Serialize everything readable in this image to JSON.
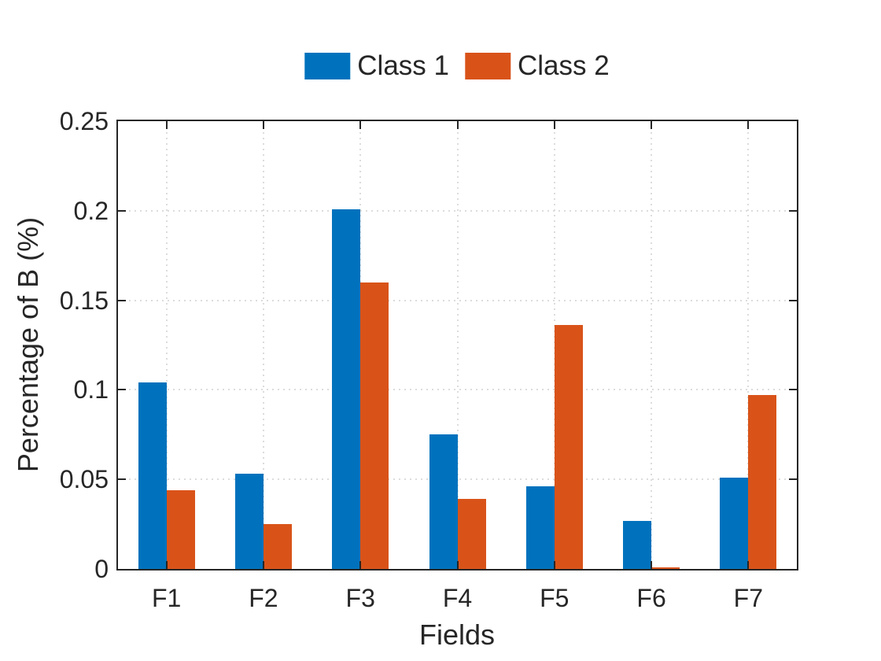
{
  "chart_data": {
    "type": "bar",
    "title": "",
    "categories": [
      "F1",
      "F2",
      "F3",
      "F4",
      "F5",
      "F6",
      "F7"
    ],
    "series": [
      {
        "name": "Class 1",
        "color": "#0072BD",
        "values": [
          0.104,
          0.053,
          0.201,
          0.075,
          0.046,
          0.027,
          0.051
        ]
      },
      {
        "name": "Class 2",
        "color": "#D95319",
        "values": [
          0.044,
          0.025,
          0.16,
          0.039,
          0.136,
          0.001,
          0.097
        ]
      }
    ],
    "xlabel": "Fields",
    "ylabel": "Percentage of B (%)",
    "ylim": [
      0,
      0.25
    ],
    "yticks": [
      0,
      0.05,
      0.1,
      0.15,
      0.2,
      0.25
    ],
    "ytick_labels": [
      "0",
      "0.05",
      "0.1",
      "0.15",
      "0.2",
      "0.25"
    ],
    "grid": "dotted",
    "grid_color": "#dcdcdc",
    "axis_color": "#262626",
    "legend_position": "top-center",
    "legend_box": "none"
  }
}
